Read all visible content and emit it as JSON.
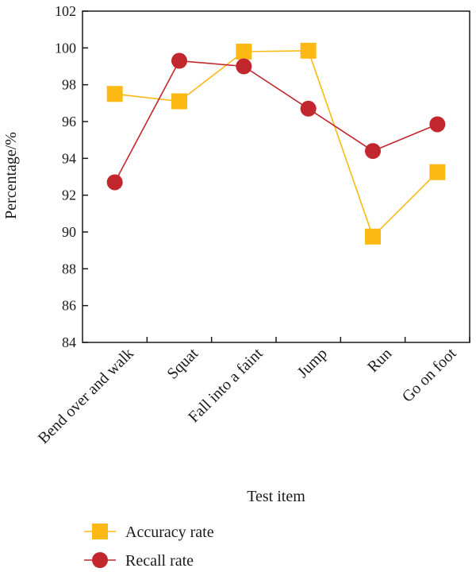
{
  "chart_data": {
    "type": "line",
    "categories": [
      "Bend over and walk",
      "Squat",
      "Fall into a faint",
      "Jump",
      "Run",
      "Go on foot"
    ],
    "xlabel": "Test item",
    "ylabel": "Percentage/%",
    "ylim": [
      84,
      102
    ],
    "yticks": [
      84,
      86,
      88,
      90,
      92,
      94,
      96,
      98,
      100,
      102
    ],
    "grid": false,
    "legend_position": "bottom-left",
    "series": [
      {
        "name": "Accuracy rate",
        "marker": "square",
        "color": "#FDB913",
        "values": [
          97.5,
          97.1,
          99.8,
          99.85,
          89.75,
          93.25
        ]
      },
      {
        "name": "Recall rate",
        "marker": "circle",
        "color": "#C1272D",
        "values": [
          92.7,
          99.3,
          99.0,
          96.7,
          94.4,
          95.85
        ]
      }
    ]
  }
}
